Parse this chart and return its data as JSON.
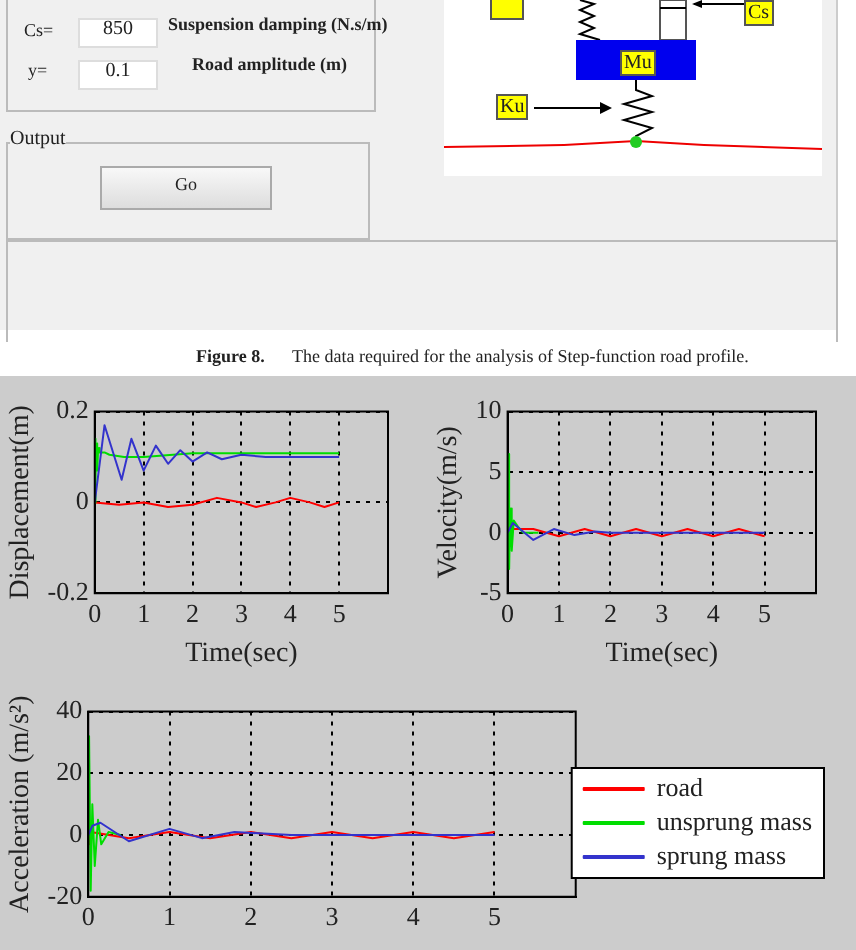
{
  "chart_data": [
    {
      "type": "other",
      "annotations": [
        "Cs=",
        "850",
        "Suspension damping (N.s/m)",
        "y=",
        "0.1",
        "Road amplitude (m)",
        "Output",
        "Go",
        "Cs",
        "Mu",
        "Ku",
        "Figure 8.",
        "The data required for the analysis of Step-function road profile."
      ]
    },
    {
      "type": "line",
      "ylabel": "Displacement(m)",
      "xlabel": "Time(sec)",
      "xlim": [
        0,
        6
      ],
      "xticks": [
        0,
        1,
        2,
        3,
        4,
        5
      ],
      "ylim": [
        -0.2,
        0.2
      ],
      "yticks": [
        -0.2,
        0,
        0.2
      ],
      "grid": true,
      "series": [
        {
          "color": "#ff0000",
          "x": [
            0,
            0.5,
            1,
            1.5,
            2,
            2.5,
            3,
            3.3,
            3.7,
            4,
            4.4,
            4.7,
            5
          ],
          "values": [
            0,
            -0.005,
            0,
            -0.01,
            -0.005,
            0.01,
            0,
            -0.01,
            0,
            0.01,
            0,
            -0.01,
            0
          ]
        },
        {
          "color": "#00dd00",
          "x": [
            0,
            0.01,
            0.02,
            0.03,
            0.05,
            0.07,
            0.1,
            0.2,
            0.3,
            0.6,
            1,
            2,
            3,
            4,
            5
          ],
          "values": [
            0,
            0.14,
            0.05,
            0.13,
            0.07,
            0.12,
            0.11,
            0.11,
            0.105,
            0.1,
            0.1,
            0.108,
            0.108,
            0.108,
            0.108
          ]
        },
        {
          "color": "#3333cc",
          "x": [
            0,
            0.2,
            0.55,
            0.75,
            1,
            1.25,
            1.5,
            1.75,
            2,
            2.3,
            2.6,
            3,
            3.5,
            4,
            5
          ],
          "values": [
            0,
            0.17,
            0.05,
            0.14,
            0.07,
            0.125,
            0.085,
            0.115,
            0.09,
            0.11,
            0.095,
            0.105,
            0.1,
            0.1,
            0.1
          ]
        }
      ]
    },
    {
      "type": "line",
      "ylabel": "Velocity(m/s)",
      "xlabel": "Time(sec)",
      "xlim": [
        0,
        6
      ],
      "xticks": [
        0,
        1,
        2,
        3,
        4,
        5
      ],
      "ylim": [
        -5,
        10
      ],
      "yticks": [
        -5,
        0,
        5,
        10
      ],
      "grid": true,
      "series": [
        {
          "color": "#ff0000",
          "x": [
            0,
            0.5,
            1,
            1.5,
            2,
            2.5,
            3,
            3.5,
            4,
            4.5,
            5
          ],
          "values": [
            0.3,
            0.3,
            -0.3,
            0.3,
            -0.3,
            0.3,
            -0.3,
            0.3,
            -0.3,
            0.3,
            -0.3
          ]
        },
        {
          "color": "#00dd00",
          "x": [
            0,
            0.01,
            0.03,
            0.05,
            0.08,
            0.12,
            0.2,
            0.3,
            0.6
          ],
          "values": [
            0,
            6.5,
            -3,
            2,
            -1.5,
            1,
            0.5,
            0,
            0
          ]
        },
        {
          "color": "#3333cc",
          "x": [
            0,
            0.1,
            0.5,
            0.9,
            1.3,
            1.7,
            2,
            3,
            4,
            5
          ],
          "values": [
            0,
            0.8,
            -0.6,
            0.3,
            -0.2,
            0.1,
            0,
            0,
            0,
            0
          ]
        }
      ]
    },
    {
      "type": "line",
      "ylabel": "Acceleration (m/s²)",
      "xlim": [
        0,
        6
      ],
      "xticks": [
        0,
        1,
        2,
        3,
        4,
        5
      ],
      "ylim": [
        -20,
        40
      ],
      "yticks": [
        -20,
        0,
        20,
        40
      ],
      "grid": true,
      "legend": "right",
      "series": [
        {
          "name": "road",
          "color": "#ff0000",
          "x": [
            0,
            0.01,
            0.03,
            0.5,
            1,
            1.5,
            2,
            2.5,
            3,
            3.5,
            4,
            4.5,
            5
          ],
          "values": [
            -1,
            -3,
            1,
            -1,
            1,
            -1,
            1,
            -1,
            1,
            -1,
            1,
            -1,
            1
          ]
        },
        {
          "name": "unsprung mass",
          "color": "#00dd00",
          "x": [
            0,
            0.01,
            0.03,
            0.05,
            0.08,
            0.12,
            0.16,
            0.25,
            0.4
          ],
          "values": [
            0,
            32,
            -18,
            10,
            -10,
            5,
            -3,
            1,
            0
          ]
        },
        {
          "name": "sprung mass",
          "color": "#3333cc",
          "x": [
            0,
            0.05,
            0.15,
            0.5,
            1,
            1.4,
            1.8,
            2.5,
            3,
            4,
            5
          ],
          "values": [
            0,
            3,
            4,
            -2,
            2,
            -1,
            1,
            0,
            0,
            0,
            0
          ]
        }
      ]
    }
  ]
}
